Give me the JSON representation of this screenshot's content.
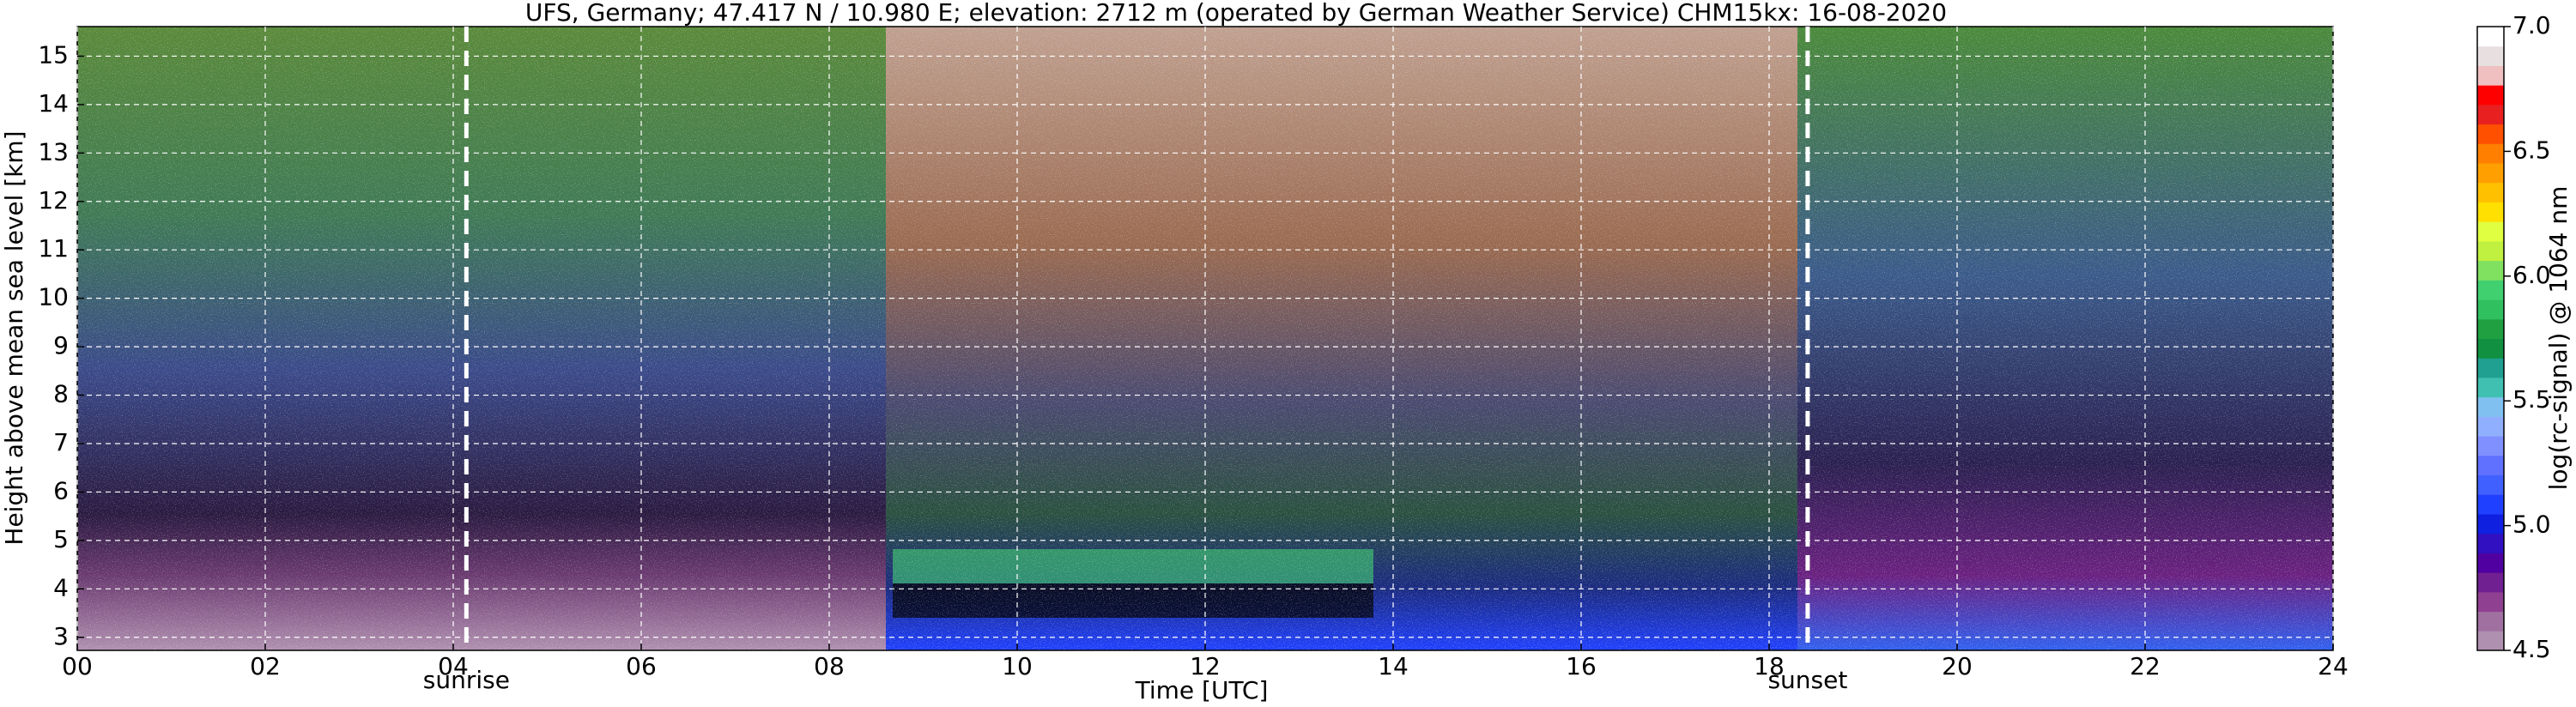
{
  "chart_data": {
    "type": "heatmap",
    "title": "UFS, Germany; 47.417 N / 10.980 E; elevation: 2712 m  (operated by German Weather Service)    CHM15kx: 16-08-2020",
    "x_label": "Time [UTC]",
    "y_label": "Height above mean sea level [km]",
    "colorbar_label": "log(rc-signal) @ 1064 nm",
    "xlim": [
      0,
      24
    ],
    "xticks": [
      {
        "value": 0,
        "label": "00"
      },
      {
        "value": 2,
        "label": "02"
      },
      {
        "value": 4,
        "label": "04"
      },
      {
        "value": 6,
        "label": "06"
      },
      {
        "value": 8,
        "label": "08"
      },
      10,
      12,
      14,
      16,
      18,
      20,
      22,
      24
    ],
    "ylim": [
      2.73,
      15.61
    ],
    "yticks": [
      3,
      4,
      5,
      6,
      7,
      8,
      9,
      10,
      11,
      12,
      13,
      14,
      15
    ],
    "clim": [
      4.5,
      7.0
    ],
    "cticks": [
      4.5,
      {
        "value": 5,
        "label": "5.0"
      },
      5.5,
      {
        "value": 6,
        "label": "6.0"
      },
      6.5,
      {
        "value": 7,
        "label": "7.0"
      }
    ],
    "colormap": [
      "#b090b0",
      "#a070a0",
      "#904090",
      "#702090",
      "#5000a0",
      "#3010c0",
      "#1020e0",
      "#2040ff",
      "#4060ff",
      "#6070ff",
      "#8090ff",
      "#90b0ff",
      "#80c0f0",
      "#40c0b0",
      "#20a090",
      "#109040",
      "#20a040",
      "#30c060",
      "#40d070",
      "#80e060",
      "#c0f040",
      "#e0ff40",
      "#ffe000",
      "#ffc000",
      "#ffa000",
      "#ff8000",
      "#ff5000",
      "#e82020",
      "#ff0000",
      "#f0c0c0",
      "#e8e0e0",
      "#ffffff"
    ],
    "grid": true,
    "annotations": [
      {
        "x": 4.14,
        "label": "sunrise"
      },
      {
        "x": 18.41,
        "label": "sunset"
      }
    ]
  }
}
